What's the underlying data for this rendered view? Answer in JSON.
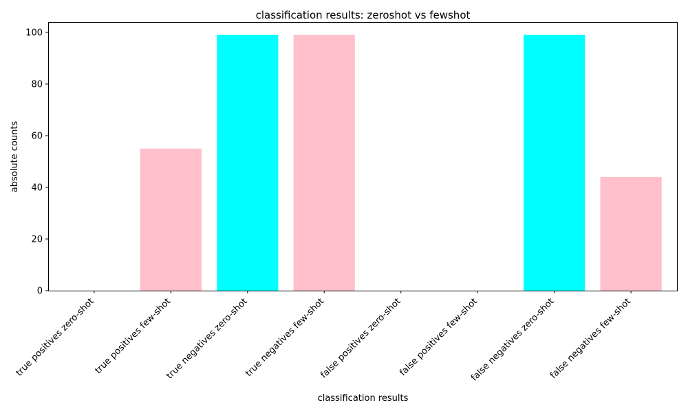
{
  "chart_data": {
    "type": "bar",
    "title": "classification results: zeroshot vs fewshot",
    "xlabel": "classification results",
    "ylabel": "absolute counts",
    "ylim": [
      0,
      104
    ],
    "yticks": [
      0,
      20,
      40,
      60,
      80,
      100
    ],
    "categories": [
      "true positives zero-shot",
      "true positives few-shot",
      "true negatives zero-shot",
      "true negatives few-shot",
      "false positives zero-shot",
      "false positives few-shot",
      "false negatives zero-shot",
      "false negatives few-shot"
    ],
    "values": [
      0,
      55,
      99,
      99,
      0,
      0,
      99,
      44
    ],
    "bar_colors": [
      "#00ffff",
      "#ffc0cb",
      "#00ffff",
      "#ffc0cb",
      "#00ffff",
      "#ffc0cb",
      "#00ffff",
      "#ffc0cb"
    ],
    "grid": false,
    "x_tick_rotation": 45
  }
}
